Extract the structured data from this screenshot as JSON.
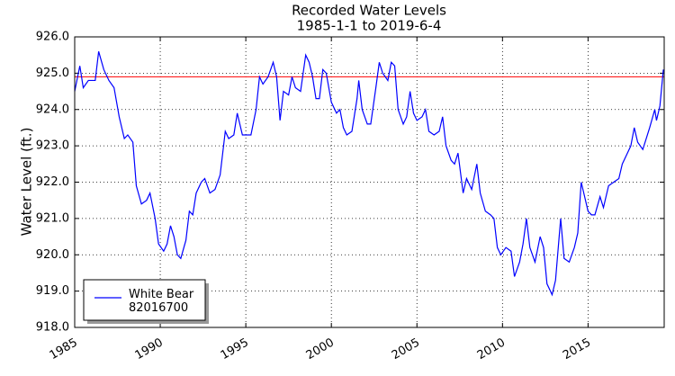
{
  "chart_data": {
    "type": "line",
    "title": "Recorded Water Levels",
    "subtitle": "1985-1-1 to 2019-6-4",
    "y_label": "Water Level (ft.)",
    "xlim": [
      1985,
      2019.45
    ],
    "xticks": [
      1985,
      1990,
      1995,
      2000,
      2005,
      2010,
      2015
    ],
    "ylim": [
      918,
      926
    ],
    "yticks": [
      {
        "value": 918,
        "label": "918.0"
      },
      {
        "value": 919,
        "label": "919.0"
      },
      {
        "value": 920,
        "label": "920.0"
      },
      {
        "value": 921,
        "label": "921.0"
      },
      {
        "value": 922,
        "label": "922.0"
      },
      {
        "value": 923,
        "label": "923.0"
      },
      {
        "value": 924,
        "label": "924.0"
      },
      {
        "value": 925,
        "label": "925.0"
      },
      {
        "value": 926,
        "label": "926.0"
      }
    ],
    "grid": true,
    "legend_position": "lower left",
    "reference_line": {
      "value": 924.9,
      "color": "#ff0000"
    },
    "x": [
      1985.0,
      1985.3,
      1985.5,
      1985.8,
      1986.2,
      1986.4,
      1986.7,
      1987.0,
      1987.3,
      1987.6,
      1987.9,
      1988.1,
      1988.4,
      1988.6,
      1988.9,
      1989.2,
      1989.4,
      1989.7,
      1989.9,
      1990.2,
      1990.4,
      1990.6,
      1990.8,
      1991.0,
      1991.2,
      1991.5,
      1991.7,
      1991.9,
      1992.1,
      1992.4,
      1992.6,
      1992.9,
      1993.2,
      1993.5,
      1993.8,
      1994.0,
      1994.3,
      1994.5,
      1994.8,
      1995.1,
      1995.3,
      1995.6,
      1995.8,
      1996.0,
      1996.3,
      1996.6,
      1996.8,
      1997.0,
      1997.2,
      1997.5,
      1997.7,
      1997.9,
      1998.2,
      1998.5,
      1998.7,
      1998.9,
      1999.1,
      1999.3,
      1999.5,
      1999.7,
      2000.0,
      2000.3,
      2000.5,
      2000.7,
      2000.9,
      2001.2,
      2001.5,
      2001.6,
      2001.8,
      2002.1,
      2002.3,
      2002.6,
      2002.8,
      2003.0,
      2003.3,
      2003.5,
      2003.7,
      2003.9,
      2004.2,
      2004.4,
      2004.6,
      2004.8,
      2005.0,
      2005.3,
      2005.5,
      2005.7,
      2006.0,
      2006.3,
      2006.5,
      2006.7,
      2007.0,
      2007.2,
      2007.4,
      2007.7,
      2007.9,
      2008.2,
      2008.5,
      2008.7,
      2009.0,
      2009.3,
      2009.5,
      2009.7,
      2009.9,
      2010.2,
      2010.5,
      2010.7,
      2011.0,
      2011.2,
      2011.4,
      2011.6,
      2011.9,
      2012.2,
      2012.4,
      2012.6,
      2012.9,
      2013.1,
      2013.4,
      2013.6,
      2013.9,
      2014.2,
      2014.4,
      2014.6,
      2014.8,
      2015.0,
      2015.2,
      2015.4,
      2015.7,
      2015.9,
      2016.2,
      2016.5,
      2016.8,
      2017.0,
      2017.3,
      2017.5,
      2017.7,
      2017.9,
      2018.2,
      2018.4,
      2018.6,
      2018.9,
      2019.0,
      2019.2,
      2019.4
    ],
    "series": [
      {
        "name": "White Bear\n82016700",
        "color": "#0000ff",
        "values": [
          924.5,
          925.2,
          924.6,
          924.8,
          924.8,
          925.6,
          925.1,
          924.8,
          924.6,
          923.8,
          923.2,
          923.3,
          923.1,
          921.9,
          921.4,
          921.5,
          921.7,
          921.0,
          920.3,
          920.1,
          920.3,
          920.8,
          920.5,
          920.0,
          919.9,
          920.4,
          921.2,
          921.1,
          921.7,
          922.0,
          922.1,
          921.7,
          921.8,
          922.2,
          923.4,
          923.2,
          923.3,
          923.9,
          923.3,
          923.3,
          923.3,
          924.0,
          924.9,
          924.7,
          924.9,
          925.3,
          924.9,
          923.7,
          924.5,
          924.4,
          924.9,
          924.6,
          924.5,
          925.5,
          925.3,
          924.9,
          924.3,
          924.3,
          925.1,
          925.0,
          924.2,
          923.9,
          924.0,
          923.5,
          923.3,
          923.4,
          924.3,
          924.8,
          924.0,
          923.6,
          923.6,
          924.6,
          925.3,
          925.0,
          924.8,
          925.3,
          925.2,
          924.0,
          923.6,
          923.8,
          924.5,
          923.9,
          923.7,
          923.8,
          924.0,
          923.4,
          923.3,
          923.4,
          923.8,
          923.0,
          922.6,
          922.5,
          922.8,
          921.7,
          922.1,
          921.8,
          922.5,
          921.7,
          921.2,
          921.1,
          921.0,
          920.2,
          920.0,
          920.2,
          920.1,
          919.4,
          919.8,
          920.3,
          921.0,
          920.2,
          919.8,
          920.5,
          920.2,
          919.2,
          918.9,
          919.3,
          921.0,
          919.9,
          919.8,
          920.2,
          920.6,
          922.0,
          921.6,
          921.2,
          921.1,
          921.1,
          921.6,
          921.3,
          921.9,
          922.0,
          922.1,
          922.5,
          922.8,
          923.0,
          923.5,
          923.1,
          922.9,
          923.2,
          923.5,
          924.0,
          923.7,
          924.1,
          925.1
        ]
      }
    ]
  }
}
